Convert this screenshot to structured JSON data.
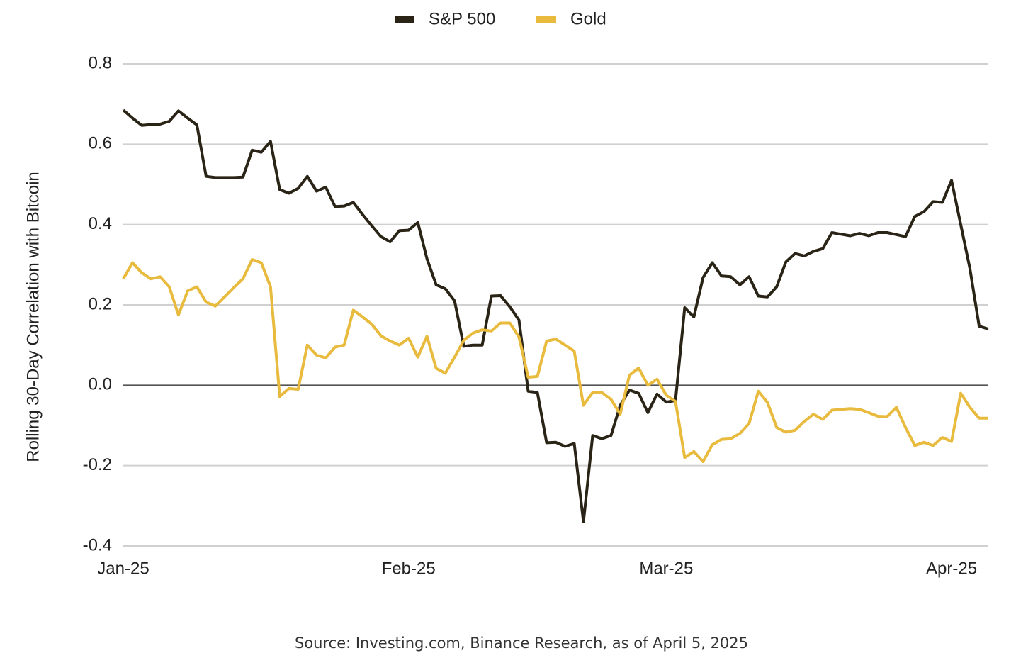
{
  "chart_data": {
    "type": "line",
    "ylabel": "Rolling 30-Day Correlation with Bitcoin",
    "source": "Source: Investing.com, Binance Research, as of April 5, 2025",
    "categories": [
      "Jan-25",
      null,
      null,
      null,
      null,
      null,
      null,
      null,
      null,
      null,
      null,
      null,
      null,
      null,
      null,
      null,
      null,
      null,
      null,
      null,
      null,
      null,
      null,
      null,
      null,
      null,
      null,
      null,
      null,
      null,
      null,
      "Feb-25",
      null,
      null,
      null,
      null,
      null,
      null,
      null,
      null,
      null,
      null,
      null,
      null,
      null,
      null,
      null,
      null,
      null,
      null,
      null,
      null,
      null,
      null,
      null,
      null,
      null,
      null,
      null,
      "Mar-25",
      null,
      null,
      null,
      null,
      null,
      null,
      null,
      null,
      null,
      null,
      null,
      null,
      null,
      null,
      null,
      null,
      null,
      null,
      null,
      null,
      null,
      null,
      null,
      null,
      null,
      null,
      null,
      null,
      null,
      null,
      "Apr-25",
      null,
      null,
      null,
      null
    ],
    "series": [
      {
        "name": "S&P 500",
        "color": "#2a2416",
        "values": [
          0.685,
          0.665,
          0.647,
          0.649,
          0.65,
          0.657,
          0.683,
          0.665,
          0.648,
          0.52,
          0.517,
          0.517,
          0.517,
          0.518,
          0.585,
          0.58,
          0.607,
          0.487,
          0.478,
          0.49,
          0.52,
          0.483,
          0.493,
          0.445,
          0.446,
          0.455,
          0.425,
          0.397,
          0.37,
          0.357,
          0.385,
          0.386,
          0.405,
          0.315,
          0.25,
          0.24,
          0.21,
          0.097,
          0.1,
          0.1,
          0.222,
          0.223,
          0.195,
          0.162,
          -0.015,
          -0.018,
          -0.143,
          -0.142,
          -0.152,
          -0.145,
          -0.34,
          -0.125,
          -0.133,
          -0.125,
          -0.05,
          -0.012,
          -0.02,
          -0.068,
          -0.022,
          -0.042,
          -0.038,
          0.193,
          0.17,
          0.268,
          0.305,
          0.272,
          0.27,
          0.25,
          0.27,
          0.222,
          0.22,
          0.245,
          0.307,
          0.328,
          0.322,
          0.333,
          0.34,
          0.38,
          0.376,
          0.372,
          0.378,
          0.372,
          0.38,
          0.38,
          0.375,
          0.37,
          0.42,
          0.432,
          0.457,
          0.455,
          0.51,
          0.4,
          0.29,
          0.147,
          0.14
        ]
      },
      {
        "name": "Gold",
        "color": "#e8bb3f",
        "values": [
          0.265,
          0.305,
          0.28,
          0.265,
          0.27,
          0.245,
          0.175,
          0.235,
          0.245,
          0.207,
          0.197,
          0.22,
          0.243,
          0.265,
          0.313,
          0.305,
          0.245,
          -0.028,
          -0.008,
          -0.01,
          0.1,
          0.075,
          0.068,
          0.095,
          0.1,
          0.187,
          0.17,
          0.152,
          0.123,
          0.11,
          0.1,
          0.117,
          0.07,
          0.122,
          0.042,
          0.03,
          0.07,
          0.112,
          0.13,
          0.138,
          0.135,
          0.155,
          0.155,
          0.12,
          0.02,
          0.022,
          0.11,
          0.115,
          0.1,
          0.085,
          -0.05,
          -0.018,
          -0.018,
          -0.035,
          -0.072,
          0.025,
          0.043,
          0.0,
          0.015,
          -0.025,
          -0.04,
          -0.18,
          -0.165,
          -0.19,
          -0.148,
          -0.135,
          -0.133,
          -0.12,
          -0.095,
          -0.015,
          -0.043,
          -0.105,
          -0.117,
          -0.112,
          -0.09,
          -0.072,
          -0.085,
          -0.062,
          -0.06,
          -0.058,
          -0.06,
          -0.068,
          -0.077,
          -0.078,
          -0.055,
          -0.105,
          -0.15,
          -0.142,
          -0.15,
          -0.13,
          -0.14,
          -0.02,
          -0.055,
          -0.082,
          -0.082
        ]
      }
    ],
    "ylim": [
      -0.4,
      0.8
    ],
    "yticks": [
      0.8,
      0.6,
      0.4,
      0.2,
      {
        "value": 0,
        "label": "0.0"
      },
      -0.2,
      -0.4
    ],
    "grid": true,
    "legend": "top"
  }
}
